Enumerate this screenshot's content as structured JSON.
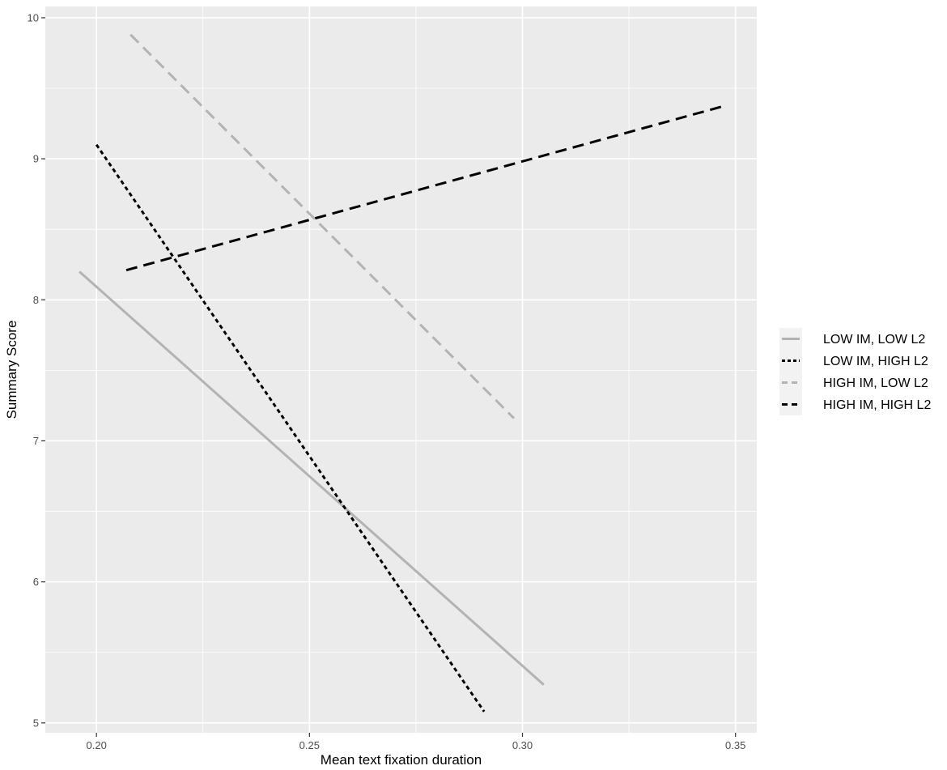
{
  "chart_data": {
    "type": "line",
    "title": "",
    "xlabel": "Mean text fixation duration",
    "ylabel": "Summary Score",
    "xlim": [
      0.188,
      0.355
    ],
    "ylim": [
      4.93,
      10.08
    ],
    "x_ticks": [
      0.2,
      0.25,
      0.3,
      0.35
    ],
    "x_tick_labels": [
      "0.20",
      "0.25",
      "0.30",
      "0.35"
    ],
    "y_ticks": [
      5,
      6,
      7,
      8,
      9,
      10
    ],
    "y_tick_labels": [
      "5",
      "6",
      "7",
      "8",
      "9",
      "10"
    ],
    "grid": true,
    "background": "#ebebeb",
    "legend_position": "right",
    "series": [
      {
        "name": "LOW IM, LOW L2",
        "color": "#b3b3b3",
        "dash": "solid",
        "x": [
          0.196,
          0.305
        ],
        "y": [
          8.2,
          5.27
        ]
      },
      {
        "name": "LOW IM, HIGH L2",
        "color": "#000000",
        "dash": "dotted",
        "x": [
          0.2,
          0.291
        ],
        "y": [
          9.1,
          5.08
        ]
      },
      {
        "name": "HIGH IM, LOW L2",
        "color": "#b3b3b3",
        "dash": "dashed",
        "x": [
          0.208,
          0.298
        ],
        "y": [
          9.88,
          7.16
        ]
      },
      {
        "name": "HIGH IM, HIGH L2",
        "color": "#000000",
        "dash": "dashed",
        "x": [
          0.207,
          0.348
        ],
        "y": [
          8.21,
          9.38
        ]
      }
    ]
  }
}
